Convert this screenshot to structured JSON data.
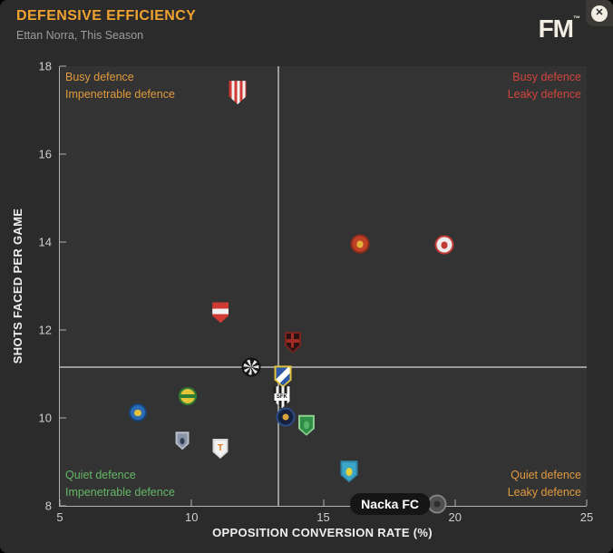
{
  "window": {
    "title": "DEFENSIVE EFFICIENCY",
    "subtitle": "Ettan Norra, This Season",
    "logo": "FM",
    "logo_tm": "™",
    "close_glyph": "✕"
  },
  "tooltip": {
    "text": "Nacka FC"
  },
  "chart_data": {
    "type": "scatter",
    "title": "Defensive Efficiency",
    "xlabel": "OPPOSITION CONVERSION RATE (%)",
    "ylabel": "SHOTS FACED PER GAME",
    "xlim": [
      5,
      25
    ],
    "ylim": [
      8,
      18
    ],
    "x_ticks": [
      5,
      10,
      15,
      20,
      25
    ],
    "y_ticks": [
      8,
      10,
      12,
      14,
      16,
      18
    ],
    "grid": false,
    "average_lines": {
      "x": 13.3,
      "y": 11.15,
      "color": "#9a9a9a"
    },
    "quadrant_labels": {
      "top_left": {
        "lines": [
          "Busy defence",
          "Impenetrable defence"
        ],
        "color": "#e09a3e"
      },
      "top_right": {
        "lines": [
          "Busy defence",
          "Leaky defence"
        ],
        "color": "#d1453e"
      },
      "bottom_left": {
        "lines": [
          "Quiet defence",
          "Impenetrable defence"
        ],
        "color": "#64b665"
      },
      "bottom_right": {
        "lines": [
          "Quiet defence",
          "Leaky defence"
        ],
        "color": "#e09a3e"
      }
    },
    "points": [
      {
        "x": 11.75,
        "y": 17.4,
        "badge": {
          "id": "red-white-striped-shield",
          "shape": "shield",
          "size": [
            19,
            26
          ],
          "motif": "vertical-stripes",
          "colors": {
            "primary": "#d03a32",
            "secondary": "#f2f2f2"
          }
        }
      },
      {
        "x": 16.4,
        "y": 13.95,
        "badge": {
          "id": "orange-eagle-circle",
          "shape": "circle",
          "size": [
            21,
            21
          ],
          "motif": "dot",
          "colors": {
            "primary": "#bf4127",
            "ring": "#8e2c1c",
            "accent": "#e3b23c"
          }
        }
      },
      {
        "x": 19.6,
        "y": 13.93,
        "badge": {
          "id": "white-red-ring-circle",
          "shape": "circle",
          "size": [
            21,
            21
          ],
          "motif": "dot",
          "colors": {
            "primary": "#ececec",
            "ring": "#c23b36",
            "accent": "#c23b36"
          }
        }
      },
      {
        "x": 11.1,
        "y": 12.4,
        "badge": {
          "id": "red-white-band-shield",
          "shape": "shield",
          "size": [
            18,
            23
          ],
          "motif": "band",
          "colors": {
            "primary": "#cf3a33",
            "accent": "#f0f0f0"
          }
        }
      },
      {
        "x": 13.85,
        "y": 11.72,
        "badge": {
          "id": "dark-red-cross-shield",
          "shape": "shield",
          "size": [
            18,
            24
          ],
          "motif": "cross",
          "colors": {
            "primary": "#2b1214",
            "ring": "#7e2220",
            "accent": "#9e2b24"
          }
        }
      },
      {
        "x": 12.26,
        "y": 11.15,
        "badge": {
          "id": "black-white-spokes-circle",
          "shape": "circle",
          "size": [
            21,
            21
          ],
          "motif": "spokes",
          "colors": {
            "primary": "#1c1c1c",
            "secondary": "#e6e6e6",
            "ring": "#111111"
          }
        }
      },
      {
        "x": 13.47,
        "y": 10.94,
        "badge": {
          "id": "blue-yellow-diagonal-shield",
          "shape": "shield",
          "size": [
            19,
            24
          ],
          "motif": "diagonal",
          "colors": {
            "primary": "#2d59a8",
            "ring": "#e3c13c",
            "accent": "#ffffff"
          }
        }
      },
      {
        "x": 13.43,
        "y": 10.47,
        "badge": {
          "id": "sfk-striped-shield",
          "shape": "shield",
          "size": [
            19,
            24
          ],
          "motif": "vertical-stripes",
          "letter": "SFK",
          "letter_color": "#111111",
          "letter_bg": "#ffffff",
          "colors": {
            "primary": "#1c1c1c",
            "secondary": "#f2f2f2"
          }
        }
      },
      {
        "x": 13.57,
        "y": 10.02,
        "badge": {
          "id": "navy-gold-circle",
          "shape": "circle",
          "size": [
            21,
            21
          ],
          "motif": "dot",
          "colors": {
            "primary": "#16223d",
            "ring": "#2c4c86",
            "accent": "#d9a33c"
          }
        }
      },
      {
        "x": 14.36,
        "y": 9.83,
        "badge": {
          "id": "green-shield",
          "shape": "shield",
          "size": [
            18,
            23
          ],
          "motif": "dot",
          "colors": {
            "primary": "#2f8f47",
            "ring": "#8fcf8f",
            "accent": "#57b368"
          }
        }
      },
      {
        "x": 9.85,
        "y": 10.49,
        "badge": {
          "id": "yellow-green-wreath-circle",
          "shape": "circle",
          "size": [
            20,
            20
          ],
          "motif": "band",
          "colors": {
            "primary": "#e3c33a",
            "ring": "#2f7d33",
            "accent": "#2f7d33"
          }
        }
      },
      {
        "x": 7.96,
        "y": 10.12,
        "badge": {
          "id": "blue-gold-circle",
          "shape": "circle",
          "size": [
            20,
            20
          ],
          "motif": "dot",
          "colors": {
            "primary": "#2d6cb5",
            "ring": "#16447e",
            "accent": "#e3c33a"
          }
        }
      },
      {
        "x": 9.65,
        "y": 9.48,
        "badge": {
          "id": "grey-blue-small-shield",
          "shape": "shield",
          "size": [
            15,
            20
          ],
          "motif": "dot",
          "colors": {
            "primary": "#8a94a6",
            "ring": "#b8c0cc",
            "accent": "#323f59"
          }
        }
      },
      {
        "x": 11.09,
        "y": 9.3,
        "badge": {
          "id": "white-orange-t-shield",
          "shape": "shield",
          "size": [
            17,
            22
          ],
          "motif": "solid",
          "letter": "T",
          "letter_color": "#e07820",
          "colors": {
            "primary": "#f2f2f2",
            "ring": "#d8d8d8"
          }
        }
      },
      {
        "x": 15.98,
        "y": 8.78,
        "badge": {
          "id": "teal-leaf-shield",
          "shape": "shield",
          "size": [
            19,
            24
          ],
          "motif": "dot",
          "colors": {
            "primary": "#3aa7c9",
            "ring": "#2e86a8",
            "accent": "#e8d23a"
          }
        }
      },
      {
        "x": 19.32,
        "y": 8.04,
        "club": "Nacka FC",
        "badge": {
          "id": "nacka-fc",
          "shape": "circle",
          "size": [
            21,
            21
          ],
          "motif": "dot",
          "colors": {
            "primary": "#4f4f4f",
            "ring": "#828282",
            "accent": "#2e2e2e"
          }
        }
      }
    ]
  }
}
